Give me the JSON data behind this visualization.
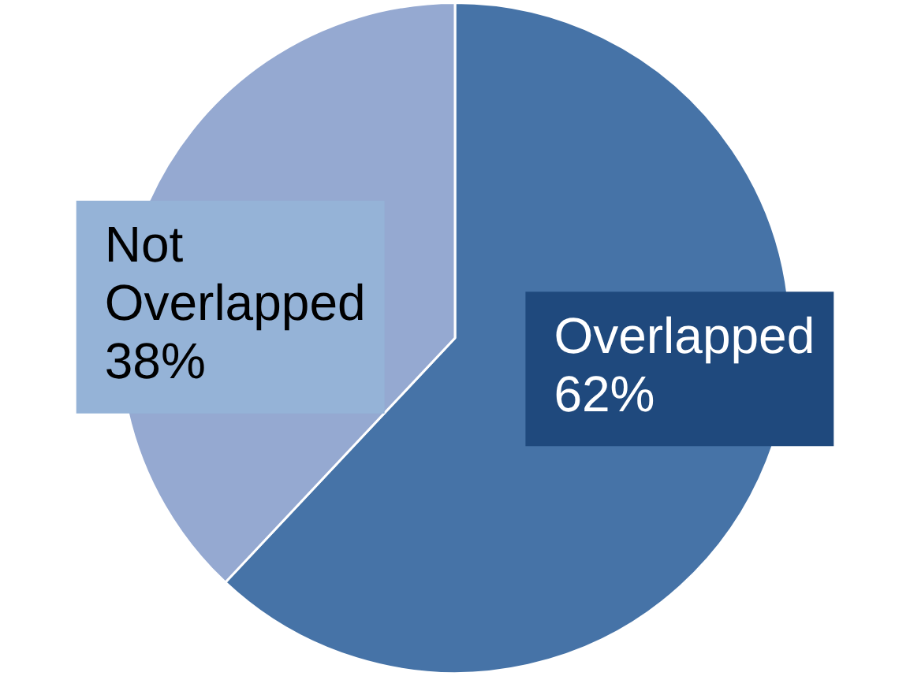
{
  "chart_data": {
    "type": "pie",
    "categories": [
      "Overlapped",
      "Not Overlapped"
    ],
    "values": [
      62,
      38
    ],
    "colors": [
      "#4673a7",
      "#95a9d1"
    ],
    "value_labels": [
      "62%",
      "38%"
    ],
    "legend": false
  }
}
